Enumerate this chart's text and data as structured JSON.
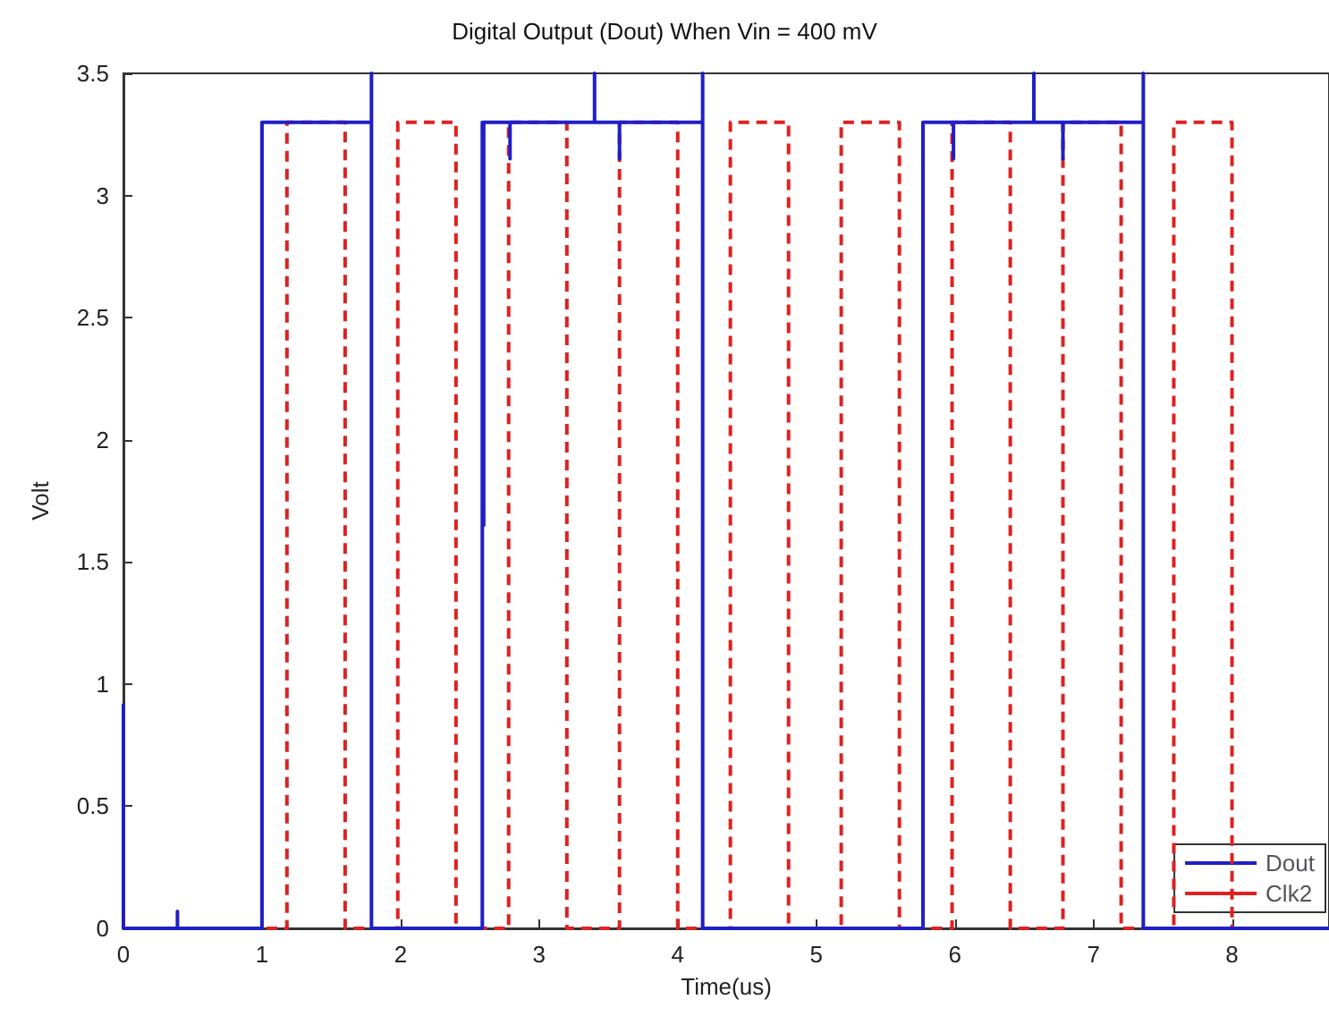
{
  "chart_data": {
    "type": "line",
    "title": "Digital Output (Dout) When Vin = 400 mV",
    "xlabel": "Time(us)",
    "ylabel": "Volt",
    "xlim": [
      0,
      8.7
    ],
    "xticks": [
      0,
      1,
      2,
      3,
      4,
      5,
      6,
      7,
      8
    ],
    "ylim": [
      0,
      3.5
    ],
    "yticks": [
      0,
      0.5,
      1,
      1.5,
      2,
      2.5,
      3,
      3.5
    ],
    "grid": false,
    "legend": "bottom right",
    "marker": "none",
    "series": [
      {
        "name": "Dout",
        "color": "#1f1fc8",
        "line_style": "solid",
        "x": [
          0,
          0,
          0,
          0.39,
          0.39,
          0.39,
          1.0,
          1.0,
          1.79,
          1.79,
          1.79,
          1.79,
          2.59,
          2.59,
          2.6,
          2.6,
          2.79,
          2.79,
          2.79,
          3.4,
          3.4,
          3.4,
          3.58,
          3.58,
          3.58,
          4.18,
          4.18,
          4.18,
          5.77,
          5.77,
          5.99,
          5.99,
          5.99,
          6.57,
          6.57,
          6.57,
          6.78,
          6.78,
          6.78,
          7.36,
          7.36,
          7.36,
          8.7
        ],
        "values": [
          0.92,
          0,
          0,
          0,
          0.07,
          0,
          0,
          3.3,
          3.3,
          3.5,
          3.3,
          0,
          0,
          3.3,
          1.65,
          3.3,
          3.3,
          3.15,
          3.3,
          3.3,
          3.5,
          3.3,
          3.3,
          3.15,
          3.3,
          3.3,
          3.5,
          0,
          0,
          3.3,
          3.3,
          3.15,
          3.3,
          3.3,
          3.5,
          3.3,
          3.3,
          3.15,
          3.3,
          3.3,
          3.5,
          0,
          0
        ]
      },
      {
        "name": "Clk2",
        "color": "#dd2222",
        "line_style": "dashed",
        "x": [
          0,
          1.18,
          1.18,
          1.6,
          1.6,
          1.98,
          1.98,
          2.4,
          2.4,
          2.78,
          2.78,
          3.2,
          3.2,
          3.58,
          3.58,
          4.0,
          4.0,
          4.38,
          4.38,
          4.8,
          4.8,
          5.18,
          5.18,
          5.6,
          5.6,
          5.98,
          5.98,
          6.4,
          6.4,
          6.78,
          6.78,
          7.2,
          7.2,
          7.58,
          7.58,
          8.0,
          8.0,
          8.7
        ],
        "values": [
          0,
          0,
          3.3,
          3.3,
          0,
          0,
          3.3,
          3.3,
          0,
          0,
          3.3,
          3.3,
          0,
          0,
          3.3,
          3.3,
          0,
          0,
          3.3,
          3.3,
          0,
          0,
          3.3,
          3.3,
          0,
          0,
          3.3,
          3.3,
          0,
          0,
          3.3,
          3.3,
          0,
          0,
          3.3,
          3.3,
          0,
          0
        ]
      }
    ]
  }
}
